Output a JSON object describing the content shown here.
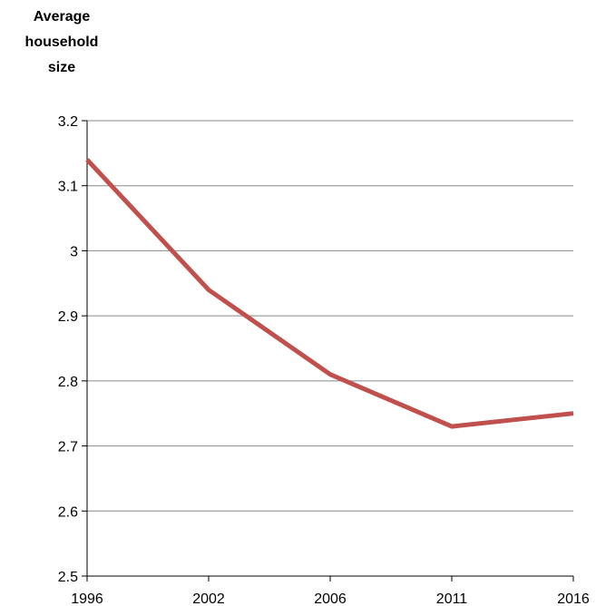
{
  "chart_data": {
    "type": "line",
    "title": "",
    "xlabel": "",
    "ylabel": "Average household size",
    "ylabel_lines": [
      "Average",
      "household",
      "size"
    ],
    "x": [
      "1996",
      "2002",
      "2006",
      "2011",
      "2016"
    ],
    "y_ticks": [
      "3.2",
      "3.1",
      "3",
      "2.9",
      "2.8",
      "2.7",
      "2.6",
      "2.5"
    ],
    "ylim": [
      2.5,
      3.2
    ],
    "grid": true,
    "legend": "none",
    "series": [
      {
        "values": [
          3.14,
          2.94,
          2.81,
          2.73,
          2.75
        ],
        "color": "#c0504d"
      }
    ],
    "gridline_color": "#888888",
    "axis_color": "#000000"
  }
}
